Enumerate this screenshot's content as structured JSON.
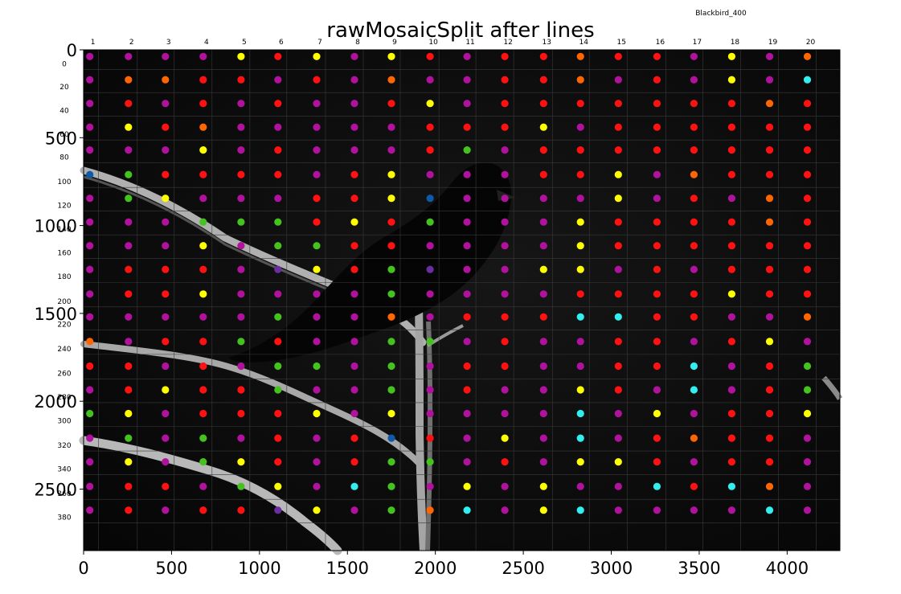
{
  "chart_data": {
    "type": "scatter",
    "title": "rawMosaicSplit after lines",
    "corner_label": "Blackbird_400",
    "background": "grayscale photo of a blackbird perched on bare branches",
    "xlim": [
      0,
      4300
    ],
    "ylim": [
      2850,
      0
    ],
    "x_ticks": [
      "0",
      "500",
      "1000",
      "1500",
      "2000",
      "2500",
      "3000",
      "3500",
      "4000"
    ],
    "y_ticks": [
      "0",
      "500",
      "1000",
      "1500",
      "2000",
      "2500"
    ],
    "column_labels": [
      "1",
      "2",
      "3",
      "4",
      "5",
      "6",
      "7",
      "8",
      "9",
      "10",
      "11",
      "12",
      "13",
      "14",
      "15",
      "16",
      "17",
      "18",
      "19",
      "20"
    ],
    "row_labels": [
      "0",
      "20",
      "40",
      "60",
      "80",
      "100",
      "120",
      "140",
      "160",
      "180",
      "200",
      "220",
      "240",
      "260",
      "280",
      "300",
      "320",
      "340",
      "360",
      "380"
    ],
    "grid": true,
    "palette": {
      "m": "#b0129e",
      "r": "#ff1111",
      "y": "#ffff00",
      "o": "#ff6600",
      "g": "#44c21e",
      "c": "#33eeee",
      "p": "#6a2ea0",
      "b": "#0f5aa8"
    },
    "cols_x": [
      35,
      255,
      465,
      680,
      895,
      1105,
      1325,
      1540,
      1750,
      1970,
      2180,
      2395,
      2615,
      2825,
      3040,
      3260,
      3470,
      3685,
      3900,
      4115
    ],
    "rows_y": [
      38,
      170,
      305,
      440,
      570,
      710,
      845,
      980,
      1115,
      1250,
      1390,
      1520,
      1660,
      1800,
      1935,
      2070,
      2210,
      2345,
      2485,
      2620
    ],
    "grid_colors": [
      "mmmmyrymyrmrrorrmymo",
      "moorrmrmommrromrmymc",
      "mrmrmrmmrymrrrrrrror",
      "myrommmmmrrrymrrrrrr",
      "mmmymrmmmrgmrrrrrrrr",
      "bgrrrrmrymmmrrymorrr",
      "mgymmmrrybmmmmymrmor",
      "mmmgggryrgmmmyrrrror",
      "mmmymggrrmmmmyrrrrrr",
      "mrrrmpyrgpmmyymrmrrr",
      "mrrymmmmgmmmmrrrryrr",
      "mmmmmgmmomrrrccrrmmo",
      "omrrgrmmggmrmmrrmrym",
      "rrmrmggmgmrrmmrrcmrg",
      "mryrrgmmgmrmmyrmcmrg",
      "gymrrrymymmmmcmymrry",
      "mgmgmrmrbrmymcmrorrm",
      "mymgyrmrggmrmyyrmrrm",
      "mrrmgymcgmymymmcrcom",
      "mrmrrpymgocmycmmmmcm"
    ]
  }
}
